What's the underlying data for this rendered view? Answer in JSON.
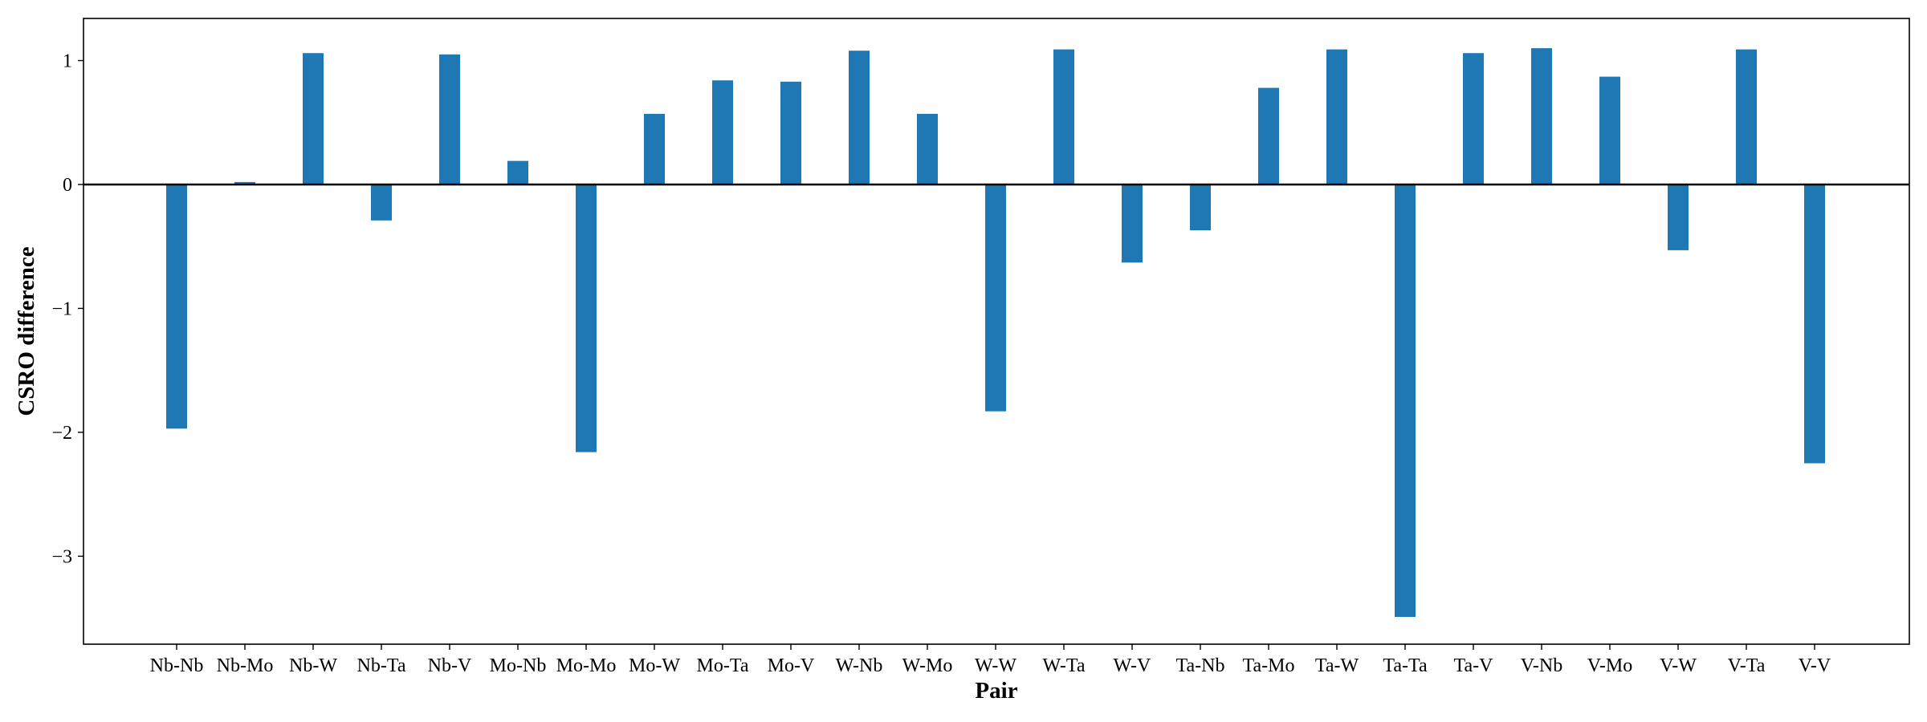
{
  "chart_data": {
    "type": "bar",
    "title": "",
    "xlabel": "Pair",
    "ylabel": "CSRO difference",
    "categories": [
      "Nb-Nb",
      "Nb-Mo",
      "Nb-W",
      "Nb-Ta",
      "Nb-V",
      "Mo-Nb",
      "Mo-Mo",
      "Mo-W",
      "Mo-Ta",
      "Mo-V",
      "W-Nb",
      "W-Mo",
      "W-W",
      "W-Ta",
      "W-V",
      "Ta-Nb",
      "Ta-Mo",
      "Ta-W",
      "Ta-Ta",
      "Ta-V",
      "V-Nb",
      "V-Mo",
      "V-W",
      "V-Ta",
      "V-V"
    ],
    "values": [
      -1.97,
      0.02,
      1.06,
      -0.29,
      1.05,
      0.19,
      -2.16,
      0.57,
      0.84,
      0.83,
      1.08,
      0.57,
      -1.83,
      1.09,
      -0.63,
      -0.37,
      0.78,
      1.09,
      -3.49,
      1.06,
      1.1,
      0.87,
      -0.53,
      1.09,
      -2.25
    ],
    "yticks": [
      1,
      0,
      -1,
      -2,
      -3
    ],
    "ytick_labels": [
      "1",
      "0",
      "−1",
      "−2",
      "−3"
    ],
    "ylim": [
      -3.71,
      1.34
    ],
    "bar_color": "#1f77b4",
    "zero_line": true,
    "grid": false,
    "legend": "none"
  }
}
